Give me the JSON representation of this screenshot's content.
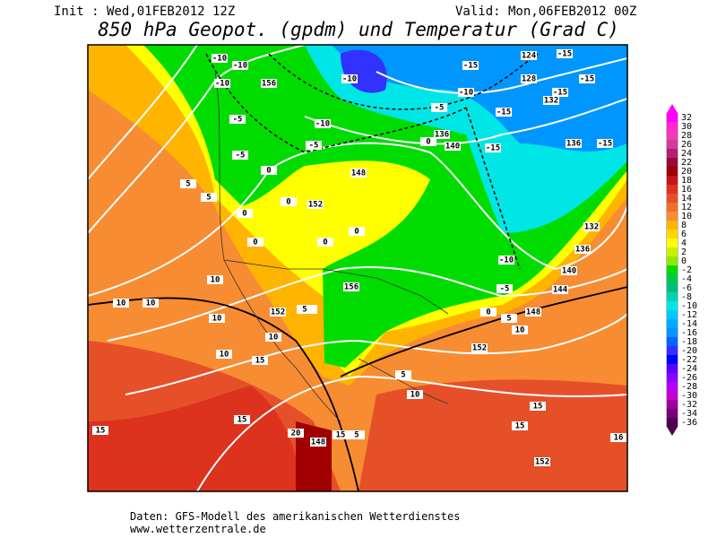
{
  "header": {
    "init": "Init : Wed,01FEB2012 12Z",
    "valid": "Valid: Mon,06FEB2012 00Z",
    "title": "850 hPa Geopot. (gpdm) und Temperatur (Grad C)"
  },
  "colorbar": {
    "labels": [
      32,
      30,
      28,
      26,
      24,
      22,
      20,
      18,
      16,
      14,
      12,
      10,
      8,
      6,
      4,
      2,
      0,
      -2,
      -4,
      -6,
      -8,
      -10,
      -12,
      -14,
      -16,
      -18,
      -20,
      -22,
      -24,
      -26,
      -28,
      -30,
      -32,
      -34,
      -36
    ],
    "colors": [
      "#ff00ff",
      "#ff28d2",
      "#f03cb4",
      "#d23c96",
      "#b41e78",
      "#960a3c",
      "#a00000",
      "#c81414",
      "#dc321e",
      "#e65028",
      "#f06e28",
      "#f88c32",
      "#ffb400",
      "#ffd700",
      "#ffff00",
      "#c8f000",
      "#96e600",
      "#00dc00",
      "#00c850",
      "#00be78",
      "#00d2b4",
      "#00e6e6",
      "#00c8ff",
      "#00aaff",
      "#0096ff",
      "#0064ff",
      "#3232ff",
      "#0000ff",
      "#5a00ff",
      "#8c00ff",
      "#b400ff",
      "#c800c8",
      "#a000a0",
      "#780078",
      "#500050"
    ]
  },
  "map_labels": [
    -10,
    -10,
    156,
    -10,
    -5,
    0,
    -5,
    5,
    5,
    0,
    0,
    0,
    152,
    148,
    0,
    0,
    156,
    0,
    10,
    10,
    10,
    152,
    5,
    10,
    10,
    15,
    10,
    -10,
    -10,
    -5,
    -10,
    -5,
    136,
    140,
    0,
    -15,
    124,
    -15,
    128,
    -15,
    132,
    -15,
    -15,
    -15,
    136,
    -15,
    132,
    136,
    140,
    144,
    -10,
    -5,
    0,
    5,
    148,
    10,
    152,
    5,
    10,
    15,
    15,
    20,
    148,
    15,
    5,
    15,
    15,
    16,
    152
  ],
  "footer": {
    "source": "Daten: GFS-Modell des amerikanischen Wetterdienstes",
    "url": "www.wetterzentrale.de"
  }
}
